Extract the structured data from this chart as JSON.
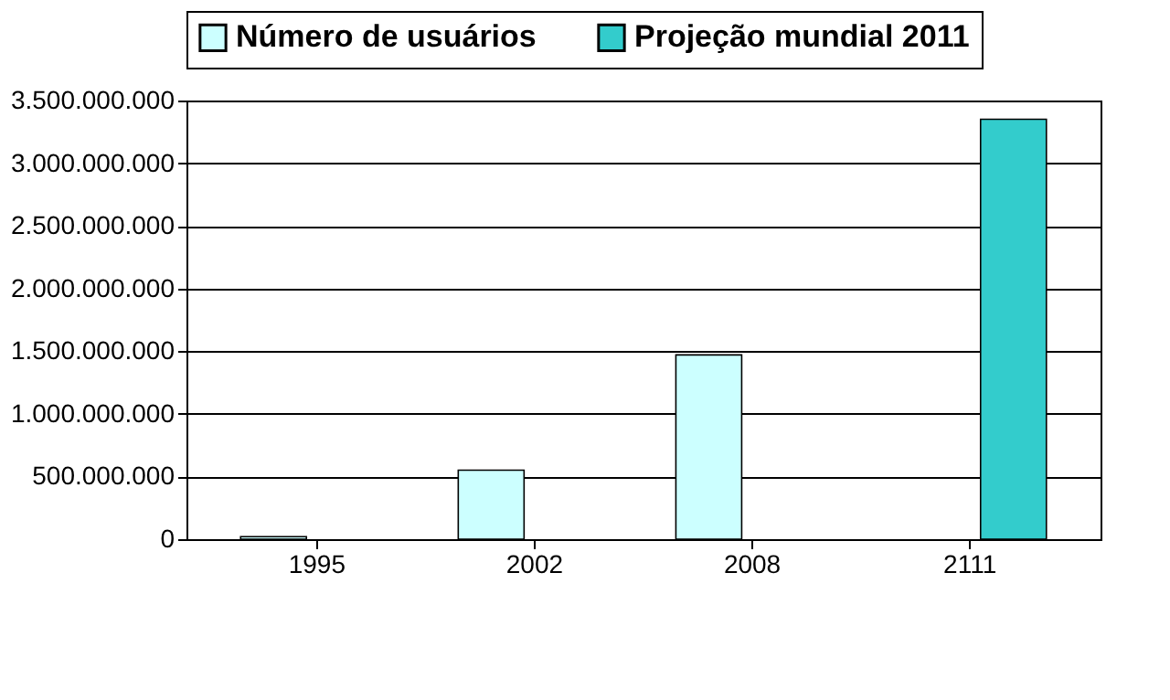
{
  "chart_data": {
    "type": "bar",
    "categories": [
      "1995",
      "2002",
      "2008",
      "2111"
    ],
    "series": [
      {
        "name": "Número de usuários",
        "color": "#ccffff",
        "values": [
          20000000,
          550000000,
          1470000000,
          null
        ]
      },
      {
        "name": "Projeção mundial 2011",
        "color": "#33cccc",
        "values": [
          null,
          null,
          null,
          3350000000
        ]
      }
    ],
    "ylim": [
      0,
      3500000000
    ],
    "yticks": [
      0,
      {
        "value": 500000000,
        "label": "500.000.000"
      },
      {
        "value": 1000000000,
        "label": "1.000.000.000"
      },
      {
        "value": 1500000000,
        "label": "1.500.000.000"
      },
      {
        "value": 2000000000,
        "label": "2.000.000.000"
      },
      {
        "value": 2500000000,
        "label": "2.500.000.000"
      },
      {
        "value": 3000000000,
        "label": "3.000.000.000"
      },
      {
        "value": 3500000000,
        "label": "3.500.000.000"
      }
    ],
    "grid": "y",
    "legend": "top"
  }
}
